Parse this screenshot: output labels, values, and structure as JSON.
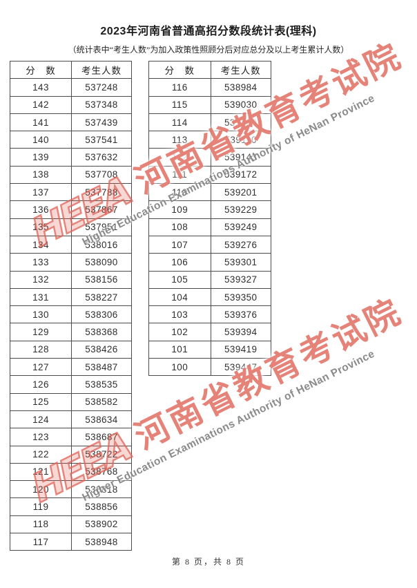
{
  "page": {
    "title": "2023年河南省普通高招分数段统计表(理科)",
    "subtitle": "（统计表中“考生人数”为加入政策性照顾分后对应总分及以上考生累计人数）",
    "footer": "第 8 页，共 8 页"
  },
  "watermark": {
    "logo_text": "HEEA",
    "cn_text": "河南省教育考试院",
    "en_text": "Higher Education Examinations Authority of HeNan Province",
    "cn_color": "#e0685c",
    "en_color": "#767676"
  },
  "tables": {
    "score_header": "分　数",
    "count_header": "考生人数",
    "left_rows": [
      [
        "143",
        "537248"
      ],
      [
        "142",
        "537348"
      ],
      [
        "141",
        "537439"
      ],
      [
        "140",
        "537541"
      ],
      [
        "139",
        "537632"
      ],
      [
        "138",
        "537708"
      ],
      [
        "137",
        "537788"
      ],
      [
        "136",
        "537867"
      ],
      [
        "135",
        "537951"
      ],
      [
        "134",
        "538016"
      ],
      [
        "133",
        "538090"
      ],
      [
        "132",
        "538156"
      ],
      [
        "131",
        "538227"
      ],
      [
        "130",
        "538306"
      ],
      [
        "129",
        "538368"
      ],
      [
        "128",
        "538426"
      ],
      [
        "127",
        "538487"
      ],
      [
        "126",
        "538535"
      ],
      [
        "125",
        "538582"
      ],
      [
        "124",
        "538634"
      ],
      [
        "123",
        "538687"
      ],
      [
        "122",
        "538722"
      ],
      [
        "121",
        "538768"
      ],
      [
        "120",
        "538818"
      ],
      [
        "119",
        "538856"
      ],
      [
        "118",
        "538902"
      ],
      [
        "117",
        "538948"
      ]
    ],
    "right_rows": [
      [
        "116",
        "538984"
      ],
      [
        "115",
        "539030"
      ],
      [
        "114",
        "539069"
      ],
      [
        "113",
        "539110"
      ],
      [
        "112",
        "539143"
      ],
      [
        "111",
        "539172"
      ],
      [
        "110",
        "539201"
      ],
      [
        "109",
        "539229"
      ],
      [
        "108",
        "539249"
      ],
      [
        "107",
        "539276"
      ],
      [
        "106",
        "539301"
      ],
      [
        "105",
        "539327"
      ],
      [
        "104",
        "539350"
      ],
      [
        "103",
        "539376"
      ],
      [
        "102",
        "539394"
      ],
      [
        "101",
        "539419"
      ],
      [
        "100",
        "539447"
      ]
    ]
  }
}
